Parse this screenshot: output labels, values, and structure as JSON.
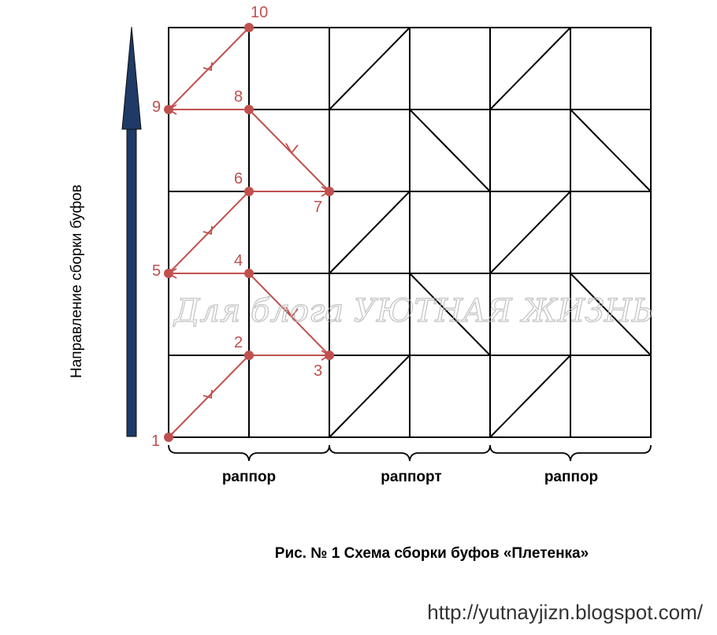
{
  "direction_label": "Направление сборки буфов",
  "repeat_labels": [
    "раппор",
    "раппорт",
    "раппор"
  ],
  "caption": "Рис. № 1 Схема сборки буфов «Плетенка»",
  "url": "http://yutnayjizn.blogspot.com/",
  "watermark": "Для блога УЮТНАЯ ЖИЗНЬ",
  "point_labels": [
    "1",
    "2",
    "3",
    "4",
    "5",
    "6",
    "7",
    "8",
    "9",
    "10"
  ],
  "colors": {
    "grid": "#000000",
    "path": "#c0504d",
    "arrow": "#1f3a66"
  }
}
